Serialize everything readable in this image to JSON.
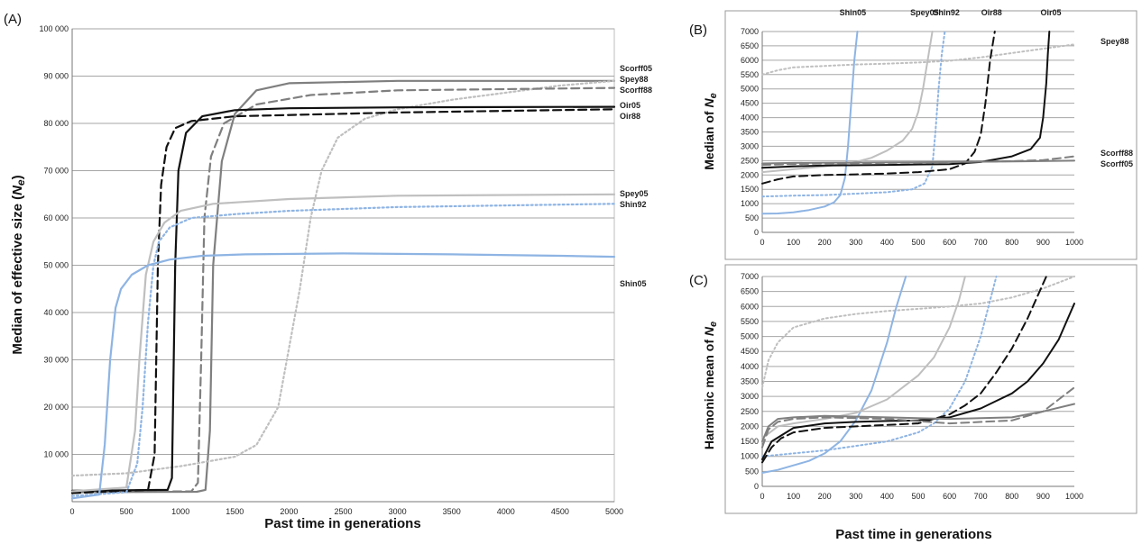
{
  "chart_data": [
    {
      "panel": "(A)",
      "type": "line",
      "ylabel": "Median of effective size (Ne)",
      "xlabel": "Past time in generations",
      "xlim": [
        0,
        5000
      ],
      "ylim": [
        0,
        100000
      ],
      "xticks": [
        0,
        500,
        1000,
        1500,
        2000,
        2500,
        3000,
        3500,
        4000,
        4500,
        5000
      ],
      "yticks": [
        10000,
        20000,
        30000,
        40000,
        50000,
        60000,
        70000,
        80000,
        90000,
        100000
      ],
      "ytick_labels": [
        "10 000",
        "20 000",
        "30 000",
        "40 000",
        "50 000",
        "60 000",
        "70 000",
        "80 000",
        "90 000",
        "100 000"
      ],
      "grid": true,
      "series": [
        {
          "name": "Scorff05",
          "color": "#7f7f7f",
          "dash": "solid",
          "x": [
            0,
            1150,
            1230,
            1270,
            1300,
            1380,
            1500,
            1700,
            2000,
            3000,
            5000
          ],
          "y": [
            2000,
            2100,
            2500,
            15000,
            50000,
            72000,
            82000,
            87000,
            88500,
            89000,
            89000
          ]
        },
        {
          "name": "Spey88",
          "color": "#bfbfbf",
          "dash": "dot",
          "x": [
            0,
            500,
            1000,
            1500,
            1700,
            1900,
            2100,
            2200,
            2300,
            2450,
            2700,
            3000,
            3500,
            4000,
            4500,
            5000
          ],
          "y": [
            5500,
            6000,
            7500,
            9500,
            12000,
            20000,
            45000,
            60000,
            70000,
            77000,
            81000,
            83000,
            85000,
            86500,
            88000,
            89000
          ]
        },
        {
          "name": "Scorff88",
          "color": "#7f7f7f",
          "dash": "dash",
          "x": [
            0,
            1100,
            1160,
            1190,
            1220,
            1280,
            1400,
            1700,
            2200,
            3000,
            5000
          ],
          "y": [
            2000,
            2200,
            4000,
            30000,
            60000,
            73000,
            80000,
            84000,
            86000,
            87000,
            87500
          ]
        },
        {
          "name": "Oir05",
          "color": "#111111",
          "dash": "solid",
          "x": [
            0,
            880,
            920,
            950,
            980,
            1050,
            1200,
            1500,
            2000,
            3000,
            5000
          ],
          "y": [
            2300,
            2500,
            5000,
            50000,
            70000,
            78000,
            81500,
            82800,
            83200,
            83400,
            83500
          ]
        },
        {
          "name": "Oir88",
          "color": "#111111",
          "dash": "dash",
          "x": [
            0,
            700,
            760,
            790,
            820,
            870,
            950,
            1100,
            1500,
            3000,
            5000
          ],
          "y": [
            1800,
            2500,
            10000,
            50000,
            67000,
            75000,
            79000,
            80500,
            81500,
            82300,
            83000
          ]
        },
        {
          "name": "Spey05",
          "color": "#bfbfbf",
          "dash": "solid",
          "x": [
            0,
            500,
            580,
            620,
            680,
            750,
            850,
            1000,
            1300,
            2000,
            3000,
            5000
          ],
          "y": [
            2200,
            3000,
            15000,
            30000,
            48000,
            55000,
            59000,
            61500,
            63000,
            64000,
            64700,
            65000
          ]
        },
        {
          "name": "Shin92",
          "color": "#8eb4e3",
          "dash": "dot",
          "x": [
            0,
            500,
            600,
            650,
            700,
            750,
            800,
            900,
            1100,
            1500,
            2000,
            3000,
            5000
          ],
          "y": [
            1200,
            2000,
            8000,
            20000,
            38000,
            50000,
            55000,
            58000,
            60000,
            60800,
            61500,
            62300,
            63000
          ]
        },
        {
          "name": "Shin05",
          "color": "#8eb4e3",
          "dash": "solid",
          "x": [
            0,
            250,
            300,
            350,
            400,
            450,
            550,
            700,
            900,
            1200,
            1600,
            2500,
            3500,
            4500,
            5000
          ],
          "y": [
            700,
            1500,
            12000,
            30000,
            41000,
            45000,
            48000,
            50000,
            51200,
            52000,
            52300,
            52500,
            52300,
            52000,
            51800
          ]
        }
      ]
    },
    {
      "panel": "(B)",
      "type": "line",
      "ylabel": "Median of Ne",
      "xlabel": "",
      "xlim": [
        0,
        1000
      ],
      "ylim": [
        0,
        7000
      ],
      "xticks": [
        0,
        100,
        200,
        300,
        400,
        500,
        600,
        700,
        800,
        900,
        1000
      ],
      "yticks": [
        0,
        500,
        1000,
        1500,
        2000,
        2500,
        3000,
        3500,
        4000,
        4500,
        5000,
        5500,
        6000,
        6500,
        7000
      ],
      "grid": true,
      "top_labels": [
        "Shin05",
        "Spey05",
        "Shin92",
        "Oir88",
        "Oir05"
      ],
      "right_labels": [
        "Spey88",
        "Scorff88",
        "Scorff05"
      ],
      "series": [
        {
          "name": "Spey88",
          "color": "#bfbfbf",
          "dash": "dot",
          "x": [
            0,
            50,
            100,
            200,
            300,
            400,
            500,
            600,
            700,
            800,
            900,
            1000
          ],
          "y": [
            5500,
            5650,
            5750,
            5800,
            5850,
            5880,
            5920,
            5980,
            6100,
            6250,
            6400,
            6550
          ]
        },
        {
          "name": "Shin05",
          "color": "#8eb4e3",
          "dash": "solid",
          "x": [
            0,
            50,
            100,
            150,
            200,
            230,
            250,
            265,
            275,
            285,
            295,
            305
          ],
          "y": [
            650,
            660,
            700,
            780,
            900,
            1050,
            1300,
            1900,
            3000,
            4500,
            6000,
            7000
          ]
        },
        {
          "name": "Spey05",
          "color": "#bfbfbf",
          "dash": "solid",
          "x": [
            0,
            100,
            200,
            300,
            350,
            400,
            450,
            480,
            500,
            515,
            530,
            545
          ],
          "y": [
            2100,
            2200,
            2300,
            2450,
            2600,
            2850,
            3200,
            3600,
            4200,
            5000,
            6000,
            7000
          ]
        },
        {
          "name": "Shin92",
          "color": "#8eb4e3",
          "dash": "dot",
          "x": [
            0,
            100,
            200,
            300,
            400,
            480,
            520,
            545,
            555,
            565,
            575,
            585
          ],
          "y": [
            1250,
            1280,
            1300,
            1350,
            1400,
            1500,
            1700,
            2300,
            3500,
            5000,
            6200,
            7000
          ]
        },
        {
          "name": "Oir88",
          "color": "#111111",
          "dash": "dash",
          "x": [
            0,
            50,
            100,
            200,
            300,
            400,
            500,
            600,
            650,
            680,
            700,
            715,
            730,
            745
          ],
          "y": [
            1700,
            1850,
            1950,
            2000,
            2020,
            2050,
            2100,
            2200,
            2400,
            2800,
            3400,
            4500,
            6000,
            7000
          ]
        },
        {
          "name": "Oir05",
          "color": "#111111",
          "dash": "solid",
          "x": [
            0,
            100,
            200,
            400,
            600,
            700,
            800,
            860,
            890,
            900,
            910,
            915,
            920
          ],
          "y": [
            2250,
            2300,
            2330,
            2350,
            2380,
            2450,
            2650,
            2900,
            3300,
            4000,
            5200,
            6200,
            7000
          ]
        },
        {
          "name": "Scorff88",
          "color": "#7f7f7f",
          "dash": "dash",
          "x": [
            0,
            100,
            200,
            400,
            600,
            800,
            900,
            950,
            1000
          ],
          "y": [
            2350,
            2380,
            2400,
            2420,
            2450,
            2480,
            2520,
            2580,
            2650
          ]
        },
        {
          "name": "Scorff05",
          "color": "#7f7f7f",
          "dash": "solid",
          "x": [
            0,
            100,
            200,
            400,
            600,
            800,
            1000
          ],
          "y": [
            2400,
            2420,
            2430,
            2440,
            2450,
            2470,
            2500
          ]
        }
      ]
    },
    {
      "panel": "(C)",
      "type": "line",
      "ylabel": "Harmonic mean of Ne",
      "xlabel": "Past time in generations",
      "xlim": [
        0,
        1000
      ],
      "ylim": [
        0,
        7000
      ],
      "xticks": [
        0,
        100,
        200,
        300,
        400,
        500,
        600,
        700,
        800,
        900,
        1000
      ],
      "yticks": [
        0,
        500,
        1000,
        1500,
        2000,
        2500,
        3000,
        3500,
        4000,
        4500,
        5000,
        5500,
        6000,
        6500,
        7000
      ],
      "grid": true,
      "series": [
        {
          "name": "Spey88",
          "color": "#bfbfbf",
          "dash": "dot",
          "x": [
            0,
            20,
            50,
            100,
            200,
            300,
            400,
            500,
            600,
            700,
            800,
            900,
            1000
          ],
          "y": [
            3300,
            4200,
            4800,
            5300,
            5600,
            5750,
            5850,
            5920,
            6000,
            6100,
            6300,
            6600,
            7000
          ]
        },
        {
          "name": "Shin05",
          "color": "#8eb4e3",
          "dash": "solid",
          "x": [
            0,
            50,
            100,
            150,
            200,
            250,
            300,
            350,
            400,
            430,
            460
          ],
          "y": [
            450,
            550,
            700,
            850,
            1100,
            1500,
            2200,
            3200,
            4800,
            6000,
            7000
          ]
        },
        {
          "name": "Spey05",
          "color": "#bfbfbf",
          "dash": "solid",
          "x": [
            0,
            50,
            100,
            200,
            300,
            400,
            500,
            550,
            600,
            630,
            650
          ],
          "y": [
            1600,
            2000,
            2100,
            2250,
            2450,
            2900,
            3700,
            4300,
            5300,
            6200,
            7000
          ]
        },
        {
          "name": "Shin92",
          "color": "#8eb4e3",
          "dash": "dot",
          "x": [
            0,
            100,
            200,
            300,
            400,
            500,
            550,
            600,
            650,
            700,
            730,
            750
          ],
          "y": [
            1000,
            1100,
            1200,
            1350,
            1500,
            1800,
            2100,
            2600,
            3500,
            5000,
            6200,
            7000
          ]
        },
        {
          "name": "Oir88",
          "color": "#111111",
          "dash": "dash",
          "x": [
            0,
            30,
            60,
            100,
            200,
            300,
            400,
            500,
            600,
            650,
            700,
            750,
            800,
            850,
            880,
            910
          ],
          "y": [
            800,
            1300,
            1600,
            1800,
            1950,
            2000,
            2050,
            2100,
            2400,
            2700,
            3100,
            3800,
            4600,
            5600,
            6300,
            7000
          ]
        },
        {
          "name": "Oir05",
          "color": "#111111",
          "dash": "solid",
          "x": [
            0,
            30,
            100,
            200,
            300,
            400,
            500,
            600,
            700,
            750,
            800,
            850,
            900,
            950,
            1000
          ],
          "y": [
            900,
            1500,
            1950,
            2100,
            2150,
            2180,
            2200,
            2300,
            2600,
            2850,
            3100,
            3500,
            4100,
            4900,
            6100
          ]
        },
        {
          "name": "Scorff88",
          "color": "#7f7f7f",
          "dash": "dash",
          "x": [
            0,
            20,
            50,
            100,
            200,
            400,
            600,
            800,
            900,
            950,
            1000
          ],
          "y": [
            1300,
            1900,
            2150,
            2250,
            2300,
            2250,
            2100,
            2200,
            2500,
            2900,
            3300
          ]
        },
        {
          "name": "Scorff05",
          "color": "#7f7f7f",
          "dash": "solid",
          "x": [
            0,
            20,
            50,
            100,
            200,
            400,
            600,
            800,
            900,
            1000
          ],
          "y": [
            1500,
            2000,
            2250,
            2300,
            2350,
            2300,
            2250,
            2300,
            2500,
            2750
          ]
        }
      ]
    }
  ]
}
